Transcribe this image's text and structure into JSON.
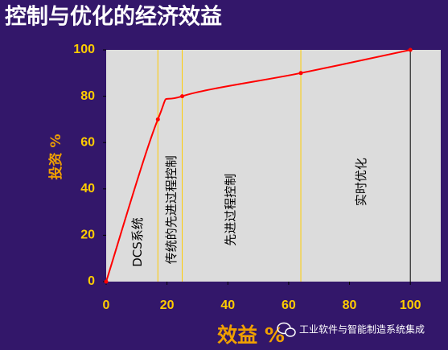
{
  "chart_data": {
    "type": "line",
    "title": "控制与优化的经济效益",
    "x_label": "效益 %",
    "y_label": "投资 %",
    "x": [
      0,
      17,
      25,
      64,
      100
    ],
    "values": [
      0,
      70,
      80,
      90,
      100
    ],
    "color": "#ff0000",
    "xlim": [
      0,
      110
    ],
    "xticks": [
      0,
      20,
      40,
      60,
      80,
      100
    ],
    "ylim": [
      0,
      100
    ],
    "yticks": [
      0,
      20,
      40,
      60,
      80,
      100
    ],
    "vlines": [
      {
        "x": 17,
        "color": "#ffcc00"
      },
      {
        "x": 25,
        "color": "#ffcc00"
      },
      {
        "x": 64,
        "color": "#ffcc00"
      },
      {
        "x": 100,
        "color": "#000000"
      }
    ],
    "annotations": [
      {
        "text": "DCS系统",
        "x": 10.5,
        "y": 17
      },
      {
        "text": "传统的先进过程控制",
        "x": 21.5,
        "y": 31
      },
      {
        "text": "先进过程控制",
        "x": 41,
        "y": 31
      },
      {
        "text": "实时优化",
        "x": 84,
        "y": 43
      }
    ]
  },
  "watermark": "工业软件与智能制造系统集成"
}
